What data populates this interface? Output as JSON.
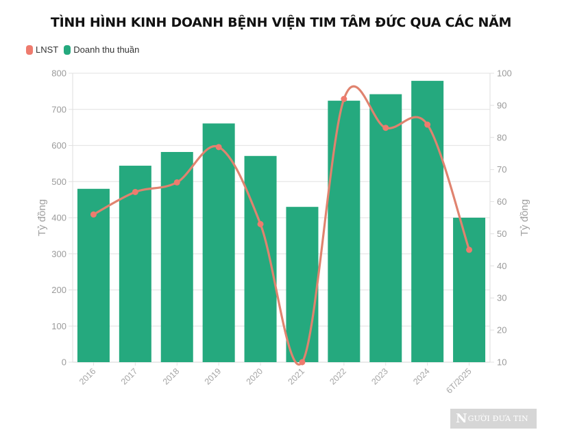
{
  "title": "TÌNH HÌNH KINH DOANH BỆNH VIỆN TIM TÂM ĐỨC QUA CÁC NĂM",
  "legend": [
    {
      "label": "LNST",
      "color": "#ee7b6e"
    },
    {
      "label": "Doanh thu thuần",
      "color": "#25a97e"
    }
  ],
  "watermark": {
    "initial": "N",
    "text": "GƯỜI ĐƯA TIN"
  },
  "chart_data": {
    "type": "bar",
    "title": "TÌNH HÌNH KINH DOANH BỆNH VIỆN TIM TÂM ĐỨC QUA CÁC NĂM",
    "categories": [
      "2016",
      "2017",
      "2018",
      "2019",
      "2020",
      "2021",
      "2022",
      "2023",
      "2024",
      "6T/2025"
    ],
    "series": [
      {
        "name": "Doanh thu thuần",
        "type": "bar",
        "axis": "left",
        "color": "#25a97e",
        "values": [
          480,
          544,
          582,
          661,
          571,
          430,
          724,
          742,
          779,
          400
        ]
      },
      {
        "name": "LNST",
        "type": "line",
        "smooth": true,
        "axis": "right",
        "color": "#ee7b6e",
        "values": [
          56,
          63,
          66,
          77,
          53,
          10,
          92,
          83,
          84,
          45
        ]
      }
    ],
    "xlabel": "",
    "ylabel": "Tỷ đồng",
    "ylabel_right": "Tỷ đồng",
    "ylim": [
      0,
      800
    ],
    "ylim_right": [
      10,
      100
    ],
    "yticks": [
      0,
      100,
      200,
      300,
      400,
      500,
      600,
      700,
      800
    ],
    "yticks_right": [
      10,
      20,
      30,
      40,
      50,
      60,
      70,
      80,
      90,
      100
    ],
    "grid": true,
    "legend_position": "top-left"
  }
}
